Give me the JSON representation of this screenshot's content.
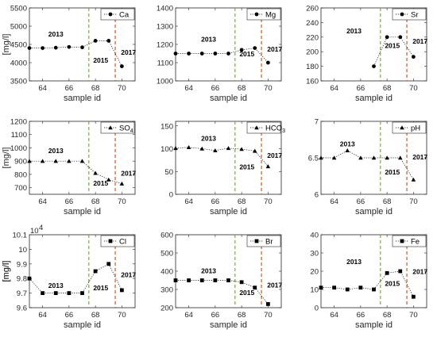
{
  "colors": {
    "line": "#000000",
    "v2013": "#77ac30",
    "v2015": "#d95319",
    "axis": "#262626"
  },
  "chart_data": [
    {
      "type": "line",
      "legend": "Ca",
      "marker": "circle",
      "xlabel": "sample id",
      "ylabel": "[mg/l]",
      "xlim": [
        63,
        71
      ],
      "xticks": [
        64,
        66,
        68,
        70
      ],
      "ylim": [
        3500,
        5500
      ],
      "yticks": [
        3500,
        4000,
        4500,
        5000,
        5500
      ],
      "x": [
        63,
        64,
        65,
        66,
        67,
        68,
        69,
        70
      ],
      "y": [
        4400,
        4400,
        4410,
        4430,
        4420,
        4600,
        4600,
        3900
      ],
      "vlines": [
        67.5,
        69.5
      ],
      "labels": [
        {
          "text": "2013",
          "x": 65,
          "y": 4720
        },
        {
          "text": "2015",
          "x": 68.4,
          "y": 4000
        },
        {
          "text": "2017",
          "x": 70.5,
          "y": 4220
        }
      ]
    },
    {
      "type": "line",
      "legend": "Mg",
      "marker": "circle",
      "xlabel": "sample id",
      "ylabel": "",
      "xlim": [
        63,
        71
      ],
      "xticks": [
        64,
        66,
        68,
        70
      ],
      "ylim": [
        1000,
        1400
      ],
      "yticks": [
        1000,
        1100,
        1200,
        1300,
        1400
      ],
      "x": [
        63,
        64,
        65,
        66,
        67,
        68,
        69,
        70
      ],
      "y": [
        1150,
        1150,
        1150,
        1150,
        1150,
        1170,
        1180,
        1100
      ],
      "vlines": [
        67.5,
        69.5
      ],
      "labels": [
        {
          "text": "2013",
          "x": 65.5,
          "y": 1215
        },
        {
          "text": "2015",
          "x": 68.4,
          "y": 1135
        },
        {
          "text": "2017",
          "x": 70.5,
          "y": 1160
        }
      ]
    },
    {
      "type": "line",
      "legend": "Sr",
      "marker": "circle",
      "xlabel": "sample id",
      "ylabel": "",
      "xlim": [
        63,
        71
      ],
      "xticks": [
        64,
        66,
        68,
        70
      ],
      "ylim": [
        160,
        260
      ],
      "yticks": [
        160,
        180,
        200,
        220,
        240,
        260
      ],
      "x": [
        67,
        68,
        69,
        70
      ],
      "y": [
        180,
        220,
        220,
        193
      ],
      "vlines": [
        67.5,
        69.5
      ],
      "labels": [
        {
          "text": "2013",
          "x": 65.5,
          "y": 225
        },
        {
          "text": "2015",
          "x": 68.4,
          "y": 205
        },
        {
          "text": "2017",
          "x": 70.5,
          "y": 211
        }
      ]
    },
    {
      "type": "line",
      "legend": "SO",
      "legend_sub": "4",
      "marker": "triangle",
      "xlabel": "sample id",
      "ylabel": "[mg/l]",
      "xlim": [
        63,
        71
      ],
      "xticks": [
        64,
        66,
        68,
        70
      ],
      "ylim": [
        650,
        1200
      ],
      "yticks": [
        700,
        800,
        900,
        1000,
        1100,
        1200
      ],
      "x": [
        63,
        64,
        65,
        66,
        67,
        68,
        69,
        70
      ],
      "y": [
        900,
        900,
        900,
        900,
        900,
        810,
        760,
        730
      ],
      "vlines": [
        67.5,
        69.5
      ],
      "labels": [
        {
          "text": "2013",
          "x": 65,
          "y": 960
        },
        {
          "text": "2015",
          "x": 68.4,
          "y": 715
        },
        {
          "text": "2017",
          "x": 70.5,
          "y": 790
        }
      ]
    },
    {
      "type": "line",
      "legend": "HCO",
      "legend_sub": "3",
      "marker": "triangle",
      "xlabel": "sample id",
      "ylabel": "",
      "xlim": [
        63,
        71
      ],
      "xticks": [
        64,
        66,
        68,
        70
      ],
      "ylim": [
        0,
        160
      ],
      "yticks": [
        0,
        50,
        100,
        150
      ],
      "x": [
        63,
        64,
        65,
        66,
        67,
        68,
        69,
        70
      ],
      "y": [
        101,
        103,
        100,
        96,
        101,
        99,
        95,
        61
      ],
      "vlines": [
        67.5,
        69.5
      ],
      "labels": [
        {
          "text": "2013",
          "x": 65.5,
          "y": 117
        },
        {
          "text": "2015",
          "x": 68.4,
          "y": 55
        },
        {
          "text": "2017",
          "x": 70.5,
          "y": 80
        }
      ]
    },
    {
      "type": "line",
      "legend": "pH",
      "marker": "triangle",
      "xlabel": "sample id",
      "ylabel": "",
      "xlim": [
        63,
        71
      ],
      "xticks": [
        64,
        66,
        68,
        70
      ],
      "ylim": [
        6,
        7
      ],
      "yticks": [
        6,
        6.5,
        7
      ],
      "x": [
        63,
        64,
        65,
        66,
        67,
        68,
        69,
        70
      ],
      "y": [
        6.5,
        6.5,
        6.6,
        6.5,
        6.5,
        6.5,
        6.5,
        6.2
      ],
      "vlines": [
        67.5,
        69.5
      ],
      "labels": [
        {
          "text": "2013",
          "x": 65,
          "y": 6.66
        },
        {
          "text": "2015",
          "x": 68.4,
          "y": 6.27
        },
        {
          "text": "2017",
          "x": 70.5,
          "y": 6.48
        }
      ]
    },
    {
      "type": "line",
      "legend": "Cl",
      "marker": "square",
      "xlabel": "sample id",
      "ylabel": "[mg/l]",
      "xlim": [
        63,
        71
      ],
      "xticks": [
        64,
        66,
        68,
        70
      ],
      "ylim": [
        9.6,
        10.1
      ],
      "yticks": [
        9.6,
        9.7,
        9.8,
        9.9,
        10,
        10.1
      ],
      "ytick_labels": [
        "9.6",
        "9.7",
        "9.8",
        "9.9",
        "10",
        "10.1"
      ],
      "exponent_base": "10",
      "exponent_power": "4",
      "x": [
        63,
        64,
        65,
        66,
        67,
        68,
        69,
        70
      ],
      "y": [
        9.8,
        9.7,
        9.7,
        9.7,
        9.7,
        9.85,
        9.9,
        9.72
      ],
      "vlines": [
        67.5,
        69.5
      ],
      "labels": [
        {
          "text": "2013",
          "x": 65,
          "y": 9.735
        },
        {
          "text": "2015",
          "x": 68.4,
          "y": 9.72
        },
        {
          "text": "2017",
          "x": 70.5,
          "y": 9.81
        }
      ]
    },
    {
      "type": "line",
      "legend": "Br",
      "marker": "square",
      "xlabel": "sample id",
      "ylabel": "",
      "xlim": [
        63,
        71
      ],
      "xticks": [
        64,
        66,
        68,
        70
      ],
      "ylim": [
        200,
        600
      ],
      "yticks": [
        200,
        300,
        400,
        500,
        600
      ],
      "x": [
        63,
        64,
        65,
        66,
        67,
        68,
        69,
        70
      ],
      "y": [
        350,
        350,
        350,
        350,
        350,
        340,
        310,
        220
      ],
      "vlines": [
        67.5,
        69.5
      ],
      "labels": [
        {
          "text": "2013",
          "x": 65.5,
          "y": 390
        },
        {
          "text": "2015",
          "x": 68.4,
          "y": 270
        },
        {
          "text": "2017",
          "x": 70.5,
          "y": 310
        }
      ]
    },
    {
      "type": "line",
      "legend": "Fe",
      "marker": "square",
      "xlabel": "sample id",
      "ylabel": "[mg/l]",
      "xlim": [
        63,
        71
      ],
      "xticks": [
        64,
        66,
        68,
        70
      ],
      "ylim": [
        0,
        40
      ],
      "yticks": [
        0,
        10,
        20,
        30,
        40
      ],
      "x": [
        63,
        64,
        65,
        66,
        67,
        68,
        69,
        70
      ],
      "y": [
        11,
        11,
        10,
        11,
        10,
        19,
        20,
        6
      ],
      "vlines": [
        67.5,
        69.5
      ],
      "labels": [
        {
          "text": "2013",
          "x": 65.5,
          "y": 24
        },
        {
          "text": "2015",
          "x": 68.4,
          "y": 12
        },
        {
          "text": "2017",
          "x": 70.5,
          "y": 18.5
        }
      ]
    }
  ]
}
